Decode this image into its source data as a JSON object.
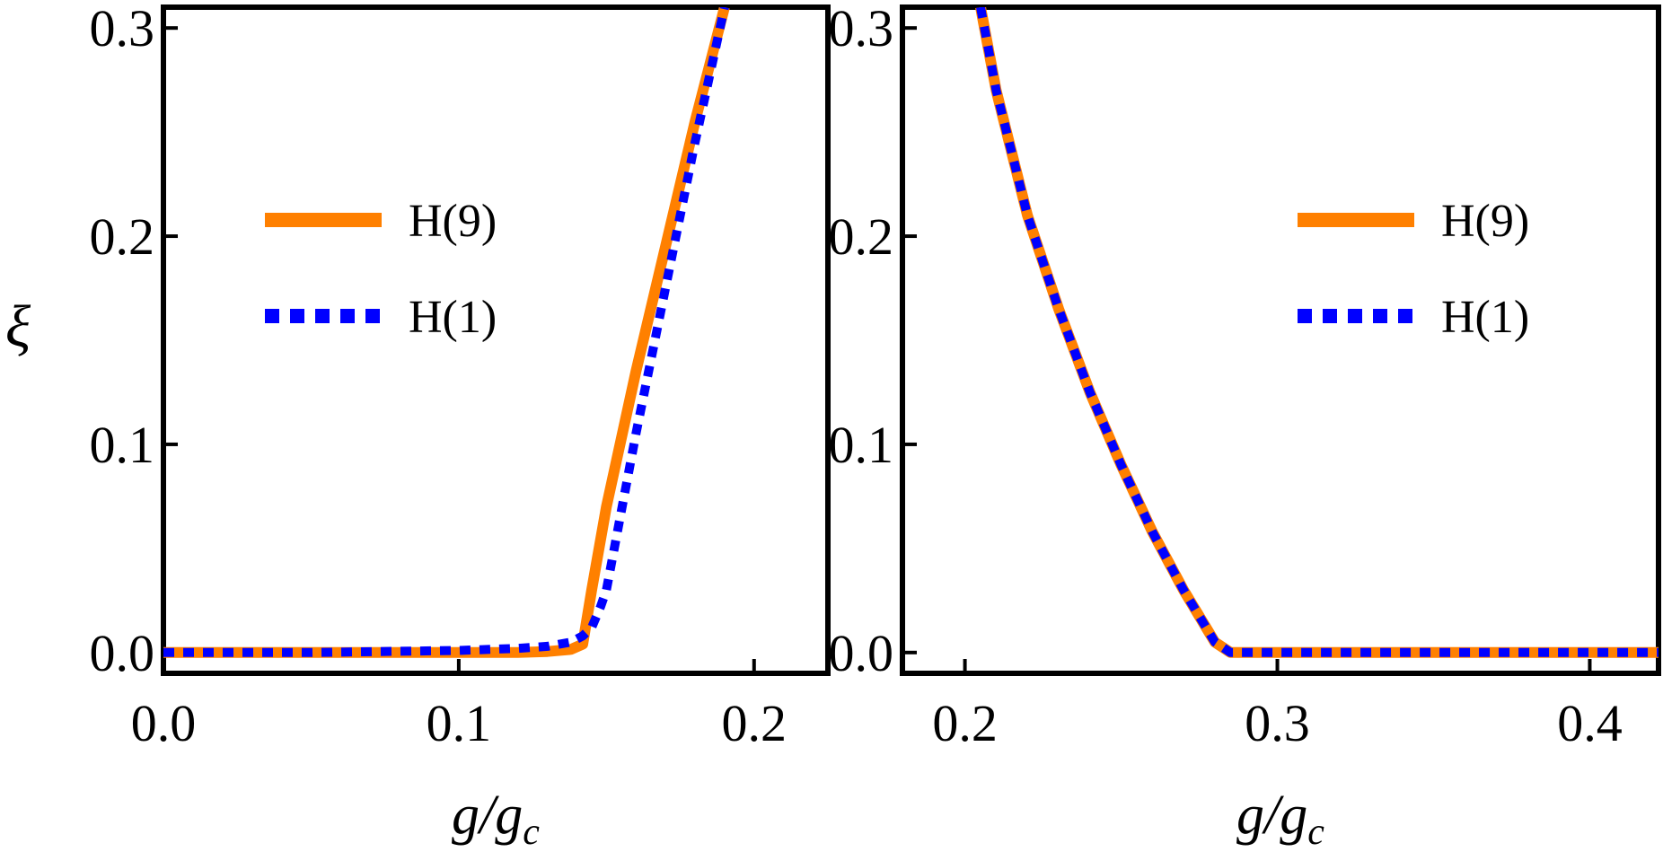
{
  "chart_data": [
    {
      "type": "line",
      "title": "",
      "xlabel": "g/g_c",
      "ylabel": "ξ",
      "xlim": [
        0.0,
        0.225
      ],
      "ylim": [
        -0.01,
        0.31
      ],
      "xticks": [
        "0.0",
        "0.1",
        "0.2"
      ],
      "yticks": [
        "0.0",
        "0.1",
        "0.2",
        "0.3"
      ],
      "xtick_values": [
        0.0,
        0.1,
        0.2
      ],
      "ytick_values": [
        0.0,
        0.1,
        0.2,
        0.3
      ],
      "grid": false,
      "legend_position": "upper-left",
      "series": [
        {
          "name": "H(9)",
          "color": "#FF8000",
          "style": "solid",
          "x": [
            0.0,
            0.05,
            0.1,
            0.12,
            0.13,
            0.138,
            0.142,
            0.145,
            0.15,
            0.16,
            0.17,
            0.18,
            0.19
          ],
          "y": [
            0.0,
            0.0,
            0.0,
            0.0,
            0.0005,
            0.0015,
            0.004,
            0.03,
            0.07,
            0.135,
            0.195,
            0.255,
            0.31
          ]
        },
        {
          "name": "H(1)",
          "color": "#0000FF",
          "style": "dotted",
          "x": [
            0.0,
            0.05,
            0.1,
            0.12,
            0.13,
            0.138,
            0.142,
            0.145,
            0.148,
            0.15,
            0.16,
            0.17,
            0.18,
            0.19
          ],
          "y": [
            0.0,
            0.0,
            0.001,
            0.002,
            0.003,
            0.005,
            0.008,
            0.012,
            0.022,
            0.03,
            0.105,
            0.175,
            0.245,
            0.31
          ]
        }
      ]
    },
    {
      "type": "line",
      "title": "",
      "xlabel": "g/g_c",
      "ylabel": "",
      "xlim": [
        0.18,
        0.422
      ],
      "ylim": [
        -0.01,
        0.31
      ],
      "xticks": [
        "0.2",
        "0.3",
        "0.4"
      ],
      "yticks": [
        "0.0",
        "0.1",
        "0.2",
        "0.3"
      ],
      "xtick_values": [
        0.2,
        0.3,
        0.4
      ],
      "ytick_values": [
        0.0,
        0.1,
        0.2,
        0.3
      ],
      "grid": false,
      "legend_position": "upper-right",
      "series": [
        {
          "name": "H(9)",
          "color": "#FF8000",
          "style": "solid",
          "x": [
            0.205,
            0.21,
            0.22,
            0.23,
            0.24,
            0.25,
            0.26,
            0.27,
            0.28,
            0.285,
            0.3,
            0.35,
            0.4,
            0.422
          ],
          "y": [
            0.31,
            0.27,
            0.21,
            0.165,
            0.125,
            0.09,
            0.058,
            0.03,
            0.005,
            0.0,
            0.0,
            0.0,
            0.0,
            0.0
          ]
        },
        {
          "name": "H(1)",
          "color": "#0000FF",
          "style": "dotted",
          "x": [
            0.205,
            0.21,
            0.22,
            0.23,
            0.24,
            0.25,
            0.26,
            0.27,
            0.28,
            0.285,
            0.3,
            0.35,
            0.4,
            0.422
          ],
          "y": [
            0.31,
            0.27,
            0.21,
            0.165,
            0.125,
            0.09,
            0.058,
            0.03,
            0.005,
            0.0,
            0.0,
            0.0,
            0.0,
            0.0
          ]
        }
      ]
    }
  ]
}
